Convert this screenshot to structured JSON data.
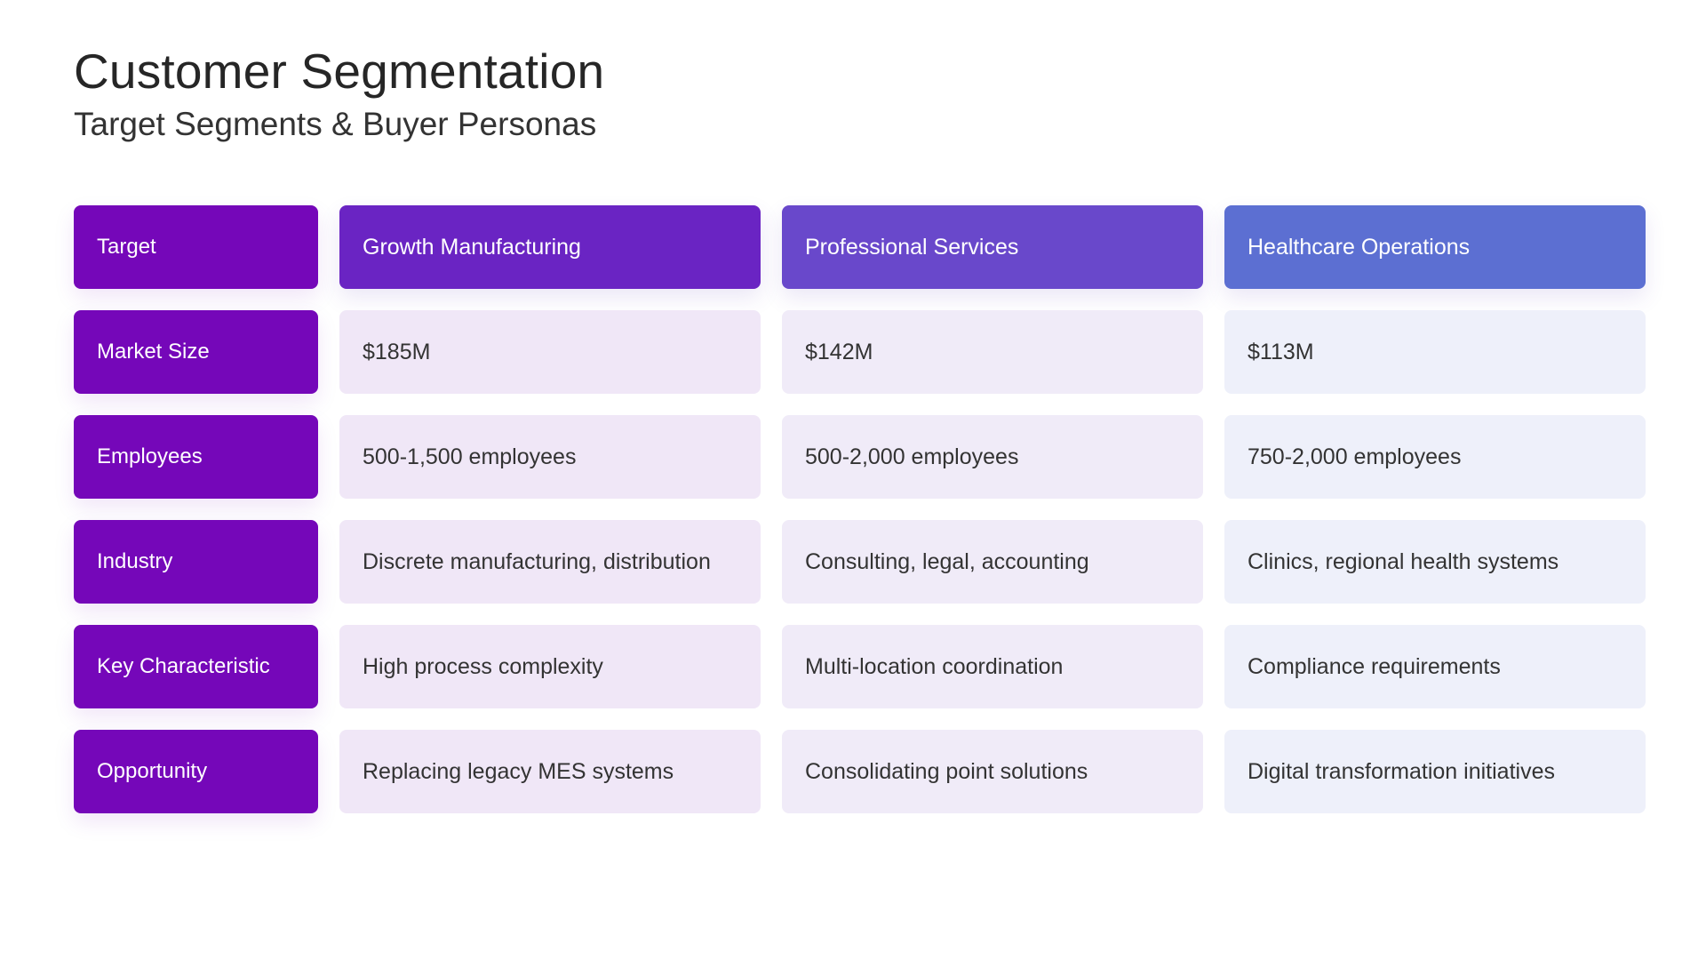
{
  "slide": {
    "title": "Customer Segmentation",
    "subtitle": "Target Segments & Buyer Personas"
  },
  "table": {
    "corner_label": "Target",
    "segments": [
      {
        "name": "Growth Manufacturing",
        "color": "#6a24c3"
      },
      {
        "name": "Professional Services",
        "color": "#6948cb"
      },
      {
        "name": "Healthcare Operations",
        "color": "#5c6fd2"
      }
    ],
    "rows": [
      {
        "label": "Market Size",
        "values": [
          "$185M",
          "$142M",
          "$113M"
        ]
      },
      {
        "label": "Employees",
        "values": [
          "500-1,500 employees",
          "500-2,000 employees",
          "750-2,000 employees"
        ]
      },
      {
        "label": "Industry",
        "values": [
          "Discrete manufacturing, distribution",
          "Consulting, legal, accounting",
          "Clinics, regional health systems"
        ]
      },
      {
        "label": "Key Characteristic",
        "values": [
          "High process complexity",
          "Multi-location coordination",
          "Compliance requirements"
        ]
      },
      {
        "label": "Opportunity",
        "values": [
          "Replacing legacy MES systems",
          "Consolidating point solutions",
          "Digital transformation initiatives"
        ]
      }
    ]
  },
  "colors": {
    "label_bg": "#7507b9",
    "data_bg": [
      "#f0e7f7",
      "#f0ebf8",
      "#eef0fa"
    ]
  }
}
